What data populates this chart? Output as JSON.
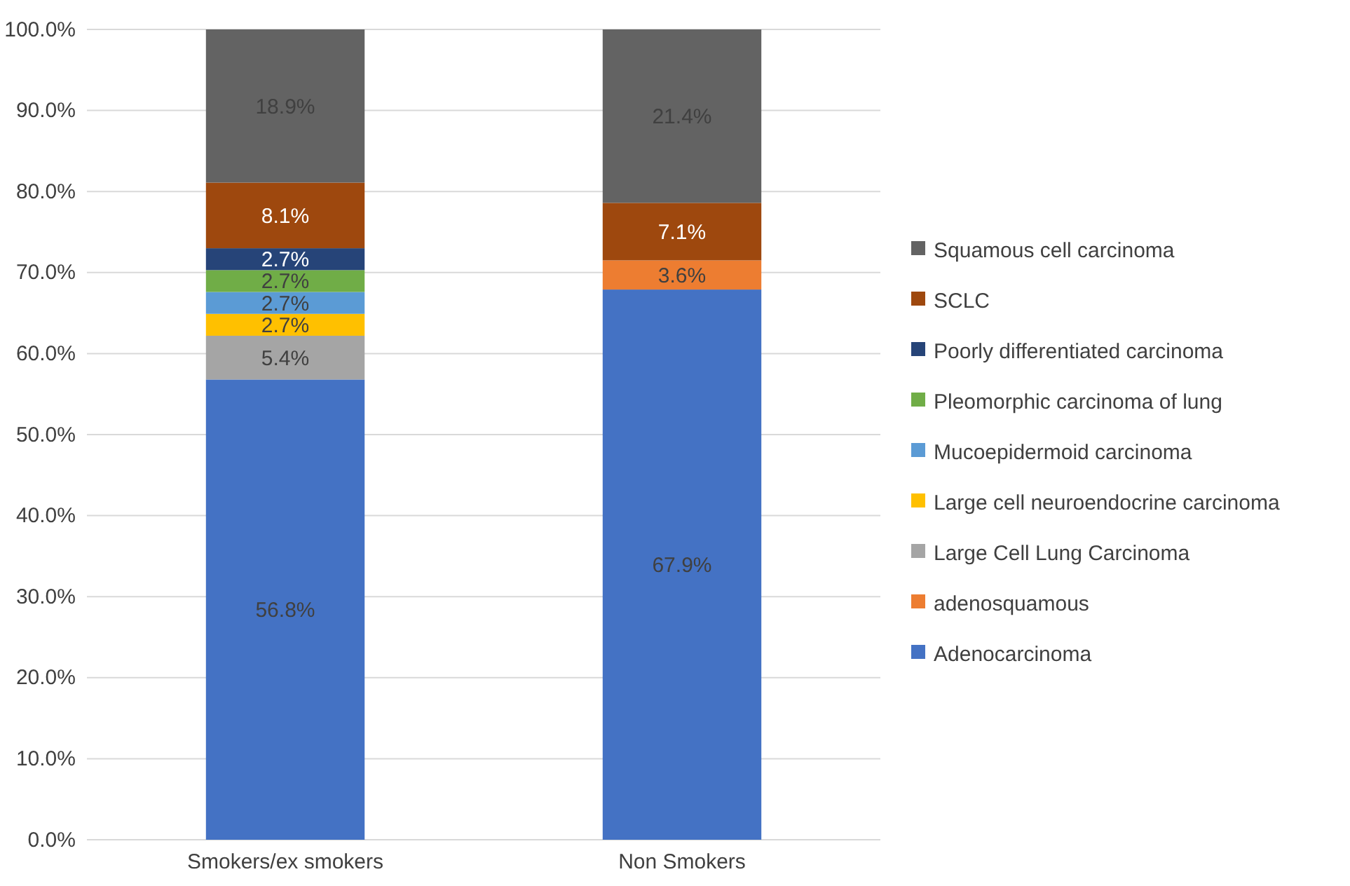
{
  "chart_data": {
    "type": "bar",
    "stacked": true,
    "categories": [
      "Smokers/ex smokers",
      "Non Smokers"
    ],
    "ylim": [
      0,
      100
    ],
    "yticks": [
      {
        "value": 0,
        "label": "0.0%"
      },
      {
        "value": 10,
        "label": "10.0%"
      },
      {
        "value": 20,
        "label": "20.0%"
      },
      {
        "value": 30,
        "label": "30.0%"
      },
      {
        "value": 40,
        "label": "40.0%"
      },
      {
        "value": 50,
        "label": "50.0%"
      },
      {
        "value": 60,
        "label": "60.0%"
      },
      {
        "value": 70,
        "label": "70.0%"
      },
      {
        "value": 80,
        "label": "80.0%"
      },
      {
        "value": 90,
        "label": "90.0%"
      },
      {
        "value": 100,
        "label": "100.0%"
      }
    ],
    "grid": "y",
    "legend": "right",
    "series": [
      {
        "name": "Adenocarcinoma",
        "color": "#4472c4",
        "values": [
          56.8,
          67.9
        ],
        "value_labels": [
          "56.8%",
          "67.9%"
        ]
      },
      {
        "name": "adenosquamous",
        "color": "#ed7d31",
        "values": [
          null,
          3.6
        ],
        "value_labels": [
          null,
          "3.6%"
        ]
      },
      {
        "name": "Large Cell Lung Carcinoma",
        "color": "#a5a5a5",
        "values": [
          5.4,
          null
        ],
        "value_labels": [
          "5.4%",
          null
        ]
      },
      {
        "name": "Large cell neuroendocrine carcinoma",
        "color": "#ffc000",
        "values": [
          2.7,
          null
        ],
        "value_labels": [
          "2.7%",
          null
        ]
      },
      {
        "name": "Mucoepidermoid carcinoma",
        "color": "#5b9bd5",
        "values": [
          2.7,
          null
        ],
        "value_labels": [
          "2.7%",
          null
        ]
      },
      {
        "name": "Pleomorphic carcinoma of lung",
        "color": "#70ad47",
        "values": [
          2.7,
          null
        ],
        "value_labels": [
          "2.7%",
          null
        ]
      },
      {
        "name": "Poorly differentiated carcinoma",
        "color": "#264478",
        "values": [
          2.7,
          null
        ],
        "value_labels": [
          "2.7%",
          null
        ]
      },
      {
        "name": "SCLC",
        "color": "#9e480e",
        "values": [
          8.1,
          7.1
        ],
        "value_labels": [
          "8.1%",
          "7.1%"
        ]
      },
      {
        "name": "Squamous cell carcinoma",
        "color": "#636363",
        "values": [
          18.9,
          21.4
        ],
        "value_labels": [
          "18.9%",
          "21.4%"
        ]
      }
    ]
  }
}
